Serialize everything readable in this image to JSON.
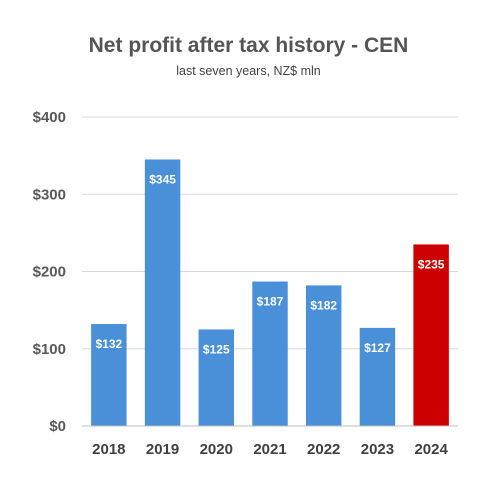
{
  "chart_data": {
    "type": "bar",
    "title": "Net profit after tax history - CEN",
    "subtitle": "last seven years, NZ$ mln",
    "categories": [
      "2018",
      "2019",
      "2020",
      "2021",
      "2022",
      "2023",
      "2024"
    ],
    "values": [
      132,
      345,
      125,
      187,
      182,
      127,
      235
    ],
    "data_labels": [
      "$132",
      "$345",
      "$125",
      "$187",
      "$182",
      "$127",
      "$235"
    ],
    "ylim": [
      0,
      400
    ],
    "yticks": [
      0,
      100,
      200,
      300,
      400
    ],
    "ytick_labels": [
      "$0",
      "$100",
      "$200",
      "$300",
      "$400"
    ],
    "xlabel": "",
    "ylabel": "",
    "grid": true,
    "legend": "none",
    "bar_colors": [
      "#4a90d9",
      "#4a90d9",
      "#4a90d9",
      "#4a90d9",
      "#4a90d9",
      "#4a90d9",
      "#cc0000"
    ]
  }
}
